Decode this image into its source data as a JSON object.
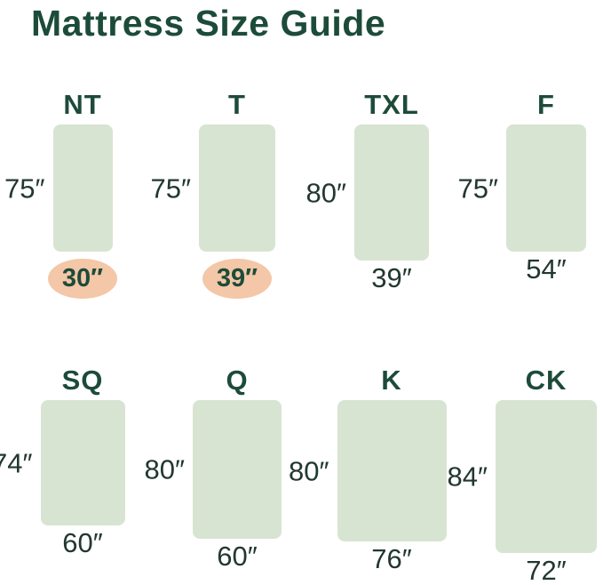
{
  "title": "Mattress Size Guide",
  "colors": {
    "heading": "#1d4b3a",
    "label_text": "#22382f",
    "mattress_fill": "#d8e4d2",
    "highlight_fill": "#f3c7a7",
    "background": "#ffffff"
  },
  "mattresses": [
    {
      "code": "NT",
      "length": "75″",
      "width": "30″",
      "width_highlighted": true
    },
    {
      "code": "T",
      "length": "75″",
      "width": "39″",
      "width_highlighted": true
    },
    {
      "code": "TXL",
      "length": "80″",
      "width": "39″",
      "width_highlighted": false
    },
    {
      "code": "F",
      "length": "75″",
      "width": "54″",
      "width_highlighted": false
    },
    {
      "code": "SQ",
      "length": "74″",
      "width": "60″",
      "width_highlighted": false
    },
    {
      "code": "Q",
      "length": "80″",
      "width": "60″",
      "width_highlighted": false
    },
    {
      "code": "K",
      "length": "80″",
      "width": "76″",
      "width_highlighted": false
    },
    {
      "code": "CK",
      "length": "84″",
      "width": "72″",
      "width_highlighted": false
    }
  ]
}
